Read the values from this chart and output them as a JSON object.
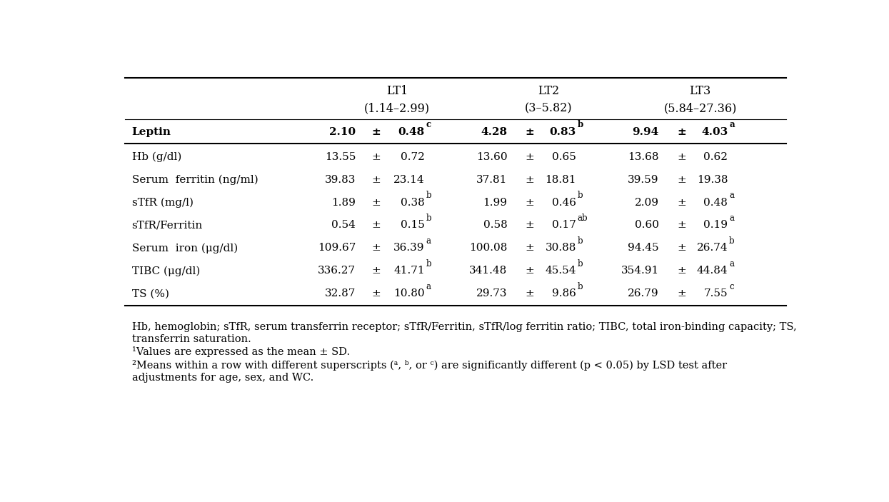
{
  "lt_headers": [
    "LT1",
    "LT2",
    "LT3"
  ],
  "lt_subheaders": [
    "(1.14–2.99)",
    "(3–5.82)",
    "(5.84–27.36)"
  ],
  "header_row": {
    "label": "Leptin",
    "lt1": [
      "2.10",
      "±",
      "0.48",
      "c"
    ],
    "lt2": [
      "4.28",
      "±",
      "0.83",
      "b"
    ],
    "lt3": [
      "9.94",
      "±",
      "4.03",
      "a"
    ]
  },
  "rows": [
    {
      "label": "Hb (g/dl)",
      "lt1": [
        "13.55",
        "±",
        "0.72",
        ""
      ],
      "lt2": [
        "13.60",
        "±",
        "0.65",
        ""
      ],
      "lt3": [
        "13.68",
        "±",
        "0.62",
        ""
      ]
    },
    {
      "label": "Serum  ferritin (ng/ml)",
      "lt1": [
        "39.83",
        "±",
        "23.14",
        ""
      ],
      "lt2": [
        "37.81",
        "±",
        "18.81",
        ""
      ],
      "lt3": [
        "39.59",
        "±",
        "19.38",
        ""
      ]
    },
    {
      "label": "sTfR (mg/l)",
      "lt1": [
        "1.89",
        "±",
        "0.38",
        "b"
      ],
      "lt2": [
        "1.99",
        "±",
        "0.46",
        "b"
      ],
      "lt3": [
        "2.09",
        "±",
        "0.48",
        "a"
      ]
    },
    {
      "label": "sTfR/Ferritin",
      "lt1": [
        "0.54",
        "±",
        "0.15",
        "b"
      ],
      "lt2": [
        "0.58",
        "±",
        "0.17",
        "ab"
      ],
      "lt3": [
        "0.60",
        "±",
        "0.19",
        "a"
      ]
    },
    {
      "label": "Serum  iron (μg/dl)",
      "lt1": [
        "109.67",
        "±",
        "36.39",
        "a"
      ],
      "lt2": [
        "100.08",
        "±",
        "30.88",
        "b"
      ],
      "lt3": [
        "94.45",
        "±",
        "26.74",
        "b"
      ]
    },
    {
      "label": "TIBC (μg/dl)",
      "lt1": [
        "336.27",
        "±",
        "41.71",
        "b"
      ],
      "lt2": [
        "341.48",
        "±",
        "45.54",
        "b"
      ],
      "lt3": [
        "354.91",
        "±",
        "44.84",
        "a"
      ]
    },
    {
      "label": "TS (%)",
      "lt1": [
        "32.87",
        "±",
        "10.80",
        "a"
      ],
      "lt2": [
        "29.73",
        "±",
        "9.86",
        "b"
      ],
      "lt3": [
        "26.79",
        "±",
        "7.55",
        "c"
      ]
    }
  ],
  "footnote_line1": "Hb, hemoglobin; sTfR, serum transferrin receptor; sTfR/Ferritin, sTfR/log ferritin ratio; TIBC, total iron-binding capacity; TS,",
  "footnote_line2": "transferrin saturation.",
  "footnote_line3": "¹Values are expressed as the mean ± SD.",
  "footnote_line4": "²Means within a row with different superscripts (ᵃ, ᵇ, or ᶜ) are significantly different (p < 0.05) by LSD test after",
  "footnote_line5": "adjustments for age, sex, and WC.",
  "background_color": "#ffffff",
  "font_size": 11.0,
  "superscript_size": 8.5,
  "footnote_size": 10.5
}
